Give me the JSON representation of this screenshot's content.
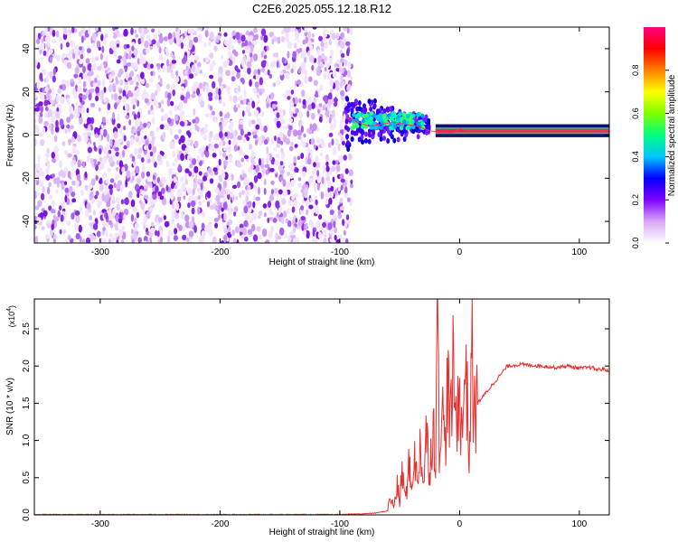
{
  "chart_data": [
    {
      "type": "heatmap",
      "title": "C2E6.2025.055.12.18.R12",
      "xlabel": "Height of straight line (km)",
      "ylabel": "Frequency (Hz)",
      "xlim": [
        -355,
        125
      ],
      "ylim": [
        -50,
        50
      ],
      "xticks": [
        -300,
        -200,
        -100,
        0,
        100
      ],
      "yticks": [
        -40,
        -20,
        0,
        20,
        40
      ],
      "noise_region_x": [
        -355,
        -90
      ],
      "signal_track": {
        "x": [
          -95,
          -85,
          -75,
          -65,
          -55,
          -45,
          -35,
          -25,
          -15,
          -5,
          0,
          10,
          30,
          60,
          90,
          125
        ],
        "freq_hz": [
          8,
          6,
          4,
          5,
          6,
          5,
          4,
          2,
          1,
          1,
          3,
          2,
          2,
          2,
          2,
          2
        ]
      },
      "colorbar": {
        "label": "Normalized spectral amplitude",
        "range": [
          0.0,
          1.0
        ],
        "ticks": [
          "0.0",
          "0.2",
          "0.4",
          "0.6",
          "0.8"
        ],
        "colors": [
          "#ffffff",
          "#d8a8f8",
          "#7f00ff",
          "#0000ff",
          "#00c8ff",
          "#00ff80",
          "#80ff00",
          "#ffff00",
          "#ff8000",
          "#ff0000",
          "#ff0080"
        ]
      }
    },
    {
      "type": "line",
      "title": "",
      "xlabel": "Height of straight line (km)",
      "ylabel": "SNR (10 * v/v)",
      "scale_label_base": "(x10",
      "scale_label_exp": "4",
      "scale_label_end": ")",
      "xlim": [
        -355,
        125
      ],
      "ylim": [
        0,
        2.9
      ],
      "xticks": [
        -300,
        -200,
        -100,
        0,
        100
      ],
      "yticks": [
        "0.0",
        "0.5",
        "1.0",
        "1.5",
        "2.0",
        "2.5"
      ],
      "series": [
        {
          "name": "SNR",
          "color": "#e53030",
          "x": [
            -355,
            -300,
            -200,
            -100,
            -80,
            -70,
            -60,
            -58,
            -55,
            -52,
            -50,
            -48,
            -45,
            -42,
            -40,
            -38,
            -35,
            -33,
            -30,
            -28,
            -25,
            -22,
            -20,
            -18,
            -17,
            -15,
            -12,
            -10,
            -8,
            -5,
            -3,
            0,
            2,
            5,
            8,
            10,
            12,
            15,
            20,
            25,
            30,
            35,
            40,
            50,
            60,
            70,
            80,
            90,
            100,
            110,
            115,
            120,
            125
          ],
          "y": [
            0.0,
            0.0,
            0.0,
            0.0,
            0.01,
            0.02,
            0.05,
            0.25,
            0.1,
            0.4,
            0.15,
            0.6,
            0.2,
            0.7,
            0.3,
            0.9,
            0.35,
            1.0,
            0.4,
            1.1,
            0.6,
            1.25,
            0.8,
            2.9,
            1.0,
            1.5,
            0.9,
            1.9,
            1.1,
            2.0,
            1.2,
            1.8,
            1.0,
            2.2,
            0.7,
            2.3,
            1.3,
            1.5,
            1.6,
            1.7,
            1.8,
            1.9,
            2.0,
            2.02,
            2.01,
            2.0,
            1.98,
            2.0,
            1.97,
            1.98,
            1.95,
            1.96,
            1.93
          ]
        }
      ]
    }
  ]
}
